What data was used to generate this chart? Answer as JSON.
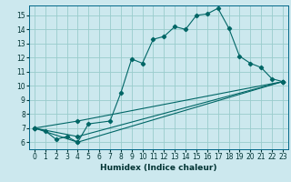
{
  "xlabel": "Humidex (Indice chaleur)",
  "bg_color": "#cce8ee",
  "grid_color": "#99cccc",
  "line_color": "#006666",
  "xlim": [
    -0.5,
    23.5
  ],
  "ylim": [
    5.5,
    15.7
  ],
  "xticks": [
    0,
    1,
    2,
    3,
    4,
    5,
    6,
    7,
    8,
    9,
    10,
    11,
    12,
    13,
    14,
    15,
    16,
    17,
    18,
    19,
    20,
    21,
    22,
    23
  ],
  "yticks": [
    6,
    7,
    8,
    9,
    10,
    11,
    12,
    13,
    14,
    15
  ],
  "series1_x": [
    0,
    1,
    2,
    3,
    4,
    5,
    7,
    8,
    9,
    10,
    11,
    12,
    13,
    14,
    15,
    16,
    17,
    18,
    19,
    20,
    21,
    22,
    23
  ],
  "series1_y": [
    7.0,
    6.8,
    6.2,
    6.4,
    6.0,
    7.3,
    7.5,
    9.5,
    11.9,
    11.6,
    13.3,
    13.5,
    14.2,
    14.0,
    15.0,
    15.1,
    15.5,
    14.1,
    12.1,
    11.6,
    11.3,
    10.5,
    10.3
  ],
  "series2_x": [
    0,
    4,
    23
  ],
  "series2_y": [
    7.0,
    6.0,
    10.3
  ],
  "series3_x": [
    0,
    4,
    23
  ],
  "series3_y": [
    7.0,
    7.5,
    10.3
  ],
  "series4_x": [
    0,
    4,
    23
  ],
  "series4_y": [
    7.0,
    6.4,
    10.3
  ],
  "tick_fontsize": 5.5,
  "xlabel_fontsize": 6.5
}
